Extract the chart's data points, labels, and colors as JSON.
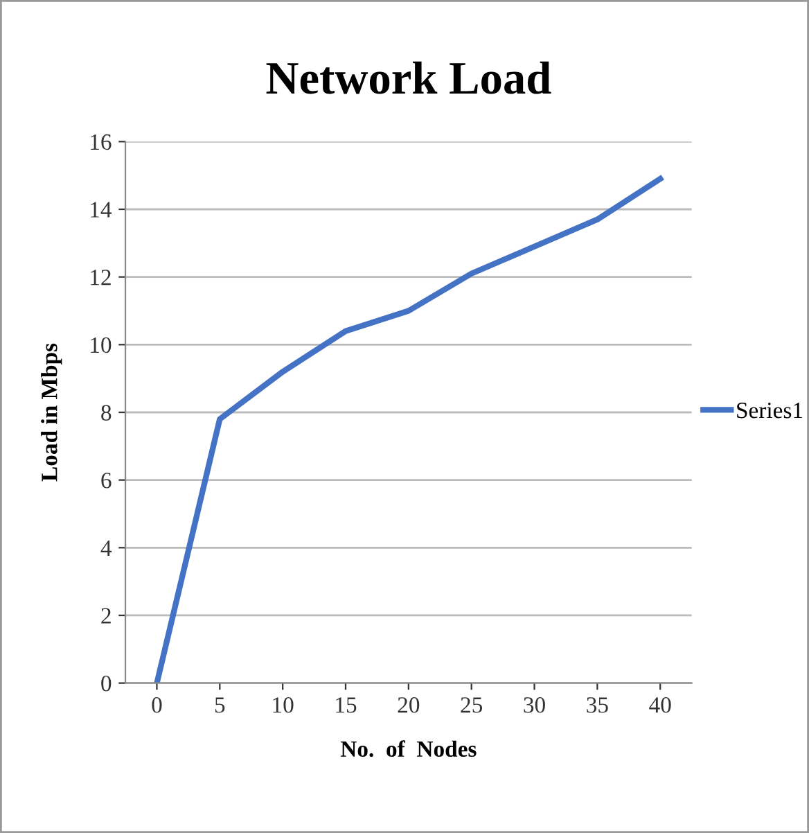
{
  "chart_data": {
    "type": "line",
    "title": "Network Load",
    "xlabel": "No.  of  Nodes",
    "ylabel": "Load in Mbps",
    "categories": [
      "0",
      "5",
      "10",
      "15",
      "20",
      "25",
      "30",
      "35",
      "40"
    ],
    "series": [
      {
        "name": "Series1",
        "color": "#4472c4",
        "values": [
          0,
          7.8,
          9.2,
          10.4,
          11.0,
          12.1,
          12.9,
          13.7,
          14.9
        ]
      }
    ],
    "ylim": [
      0,
      16
    ],
    "yticks": [
      0,
      2,
      4,
      6,
      8,
      10,
      12,
      14,
      16
    ],
    "grid": "y",
    "legend": "right",
    "marker": "none",
    "line_style": "solid"
  }
}
